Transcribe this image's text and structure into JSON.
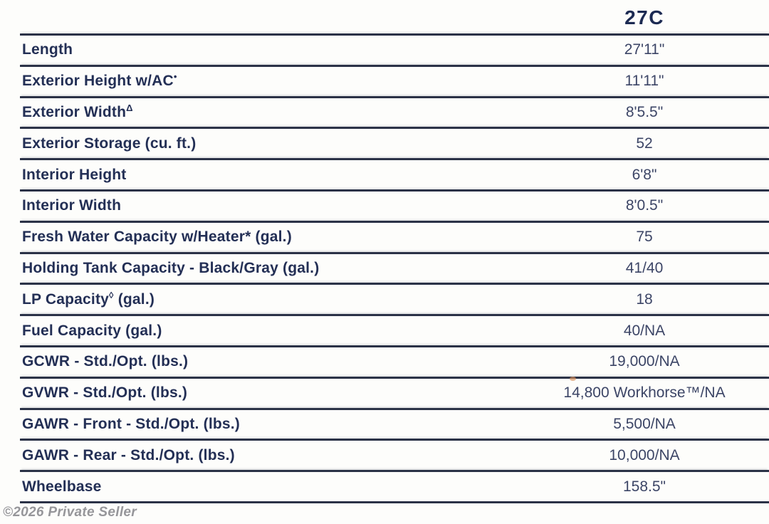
{
  "header": {
    "model": "27C"
  },
  "table": {
    "rows": [
      {
        "label": "Length",
        "sup": "",
        "label_post": "",
        "value": "27'11\""
      },
      {
        "label": "Exterior Height w/AC",
        "sup": "•",
        "label_post": "",
        "value": "11'11\""
      },
      {
        "label": "Exterior Width",
        "sup": "Δ",
        "label_post": "",
        "value": "8'5.5\""
      },
      {
        "label": "Exterior Storage (cu. ft.)",
        "sup": "",
        "label_post": "",
        "value": "52"
      },
      {
        "label": "Interior Height",
        "sup": "",
        "label_post": "",
        "value": "6'8\""
      },
      {
        "label": "Interior Width",
        "sup": "",
        "label_post": "",
        "value": "8'0.5\""
      },
      {
        "label": "Fresh Water Capacity w/Heater* (gal.)",
        "sup": "",
        "label_post": "",
        "value": "75"
      },
      {
        "label": "Holding Tank Capacity - Black/Gray (gal.)",
        "sup": "",
        "label_post": "",
        "value": "41/40"
      },
      {
        "label": "LP Capacity",
        "sup": "◊",
        "label_post": " (gal.)",
        "value": "18"
      },
      {
        "label": "Fuel Capacity (gal.)",
        "sup": "",
        "label_post": "",
        "value": "40/NA"
      },
      {
        "label": "GCWR - Std./Opt. (lbs.)",
        "sup": "",
        "label_post": "",
        "value": "19,000/NA"
      },
      {
        "label": "GVWR - Std./Opt. (lbs.)",
        "sup": "",
        "label_post": "",
        "value": "14,800 Workhorse™/NA"
      },
      {
        "label": "GAWR - Front - Std./Opt. (lbs.)",
        "sup": "",
        "label_post": "",
        "value": "5,500/NA"
      },
      {
        "label": "GAWR - Rear - Std./Opt. (lbs.)",
        "sup": "",
        "label_post": "",
        "value": "10,000/NA"
      },
      {
        "label": "Wheelbase",
        "sup": "",
        "label_post": "",
        "value": "158.5\""
      }
    ]
  },
  "footer": {
    "copyright": "©2026 Private Seller"
  },
  "colors": {
    "label_navy": "#232f55",
    "value_navy": "#3c4566",
    "line_dark": "#2b3247",
    "footer_gray": "#96969a"
  }
}
